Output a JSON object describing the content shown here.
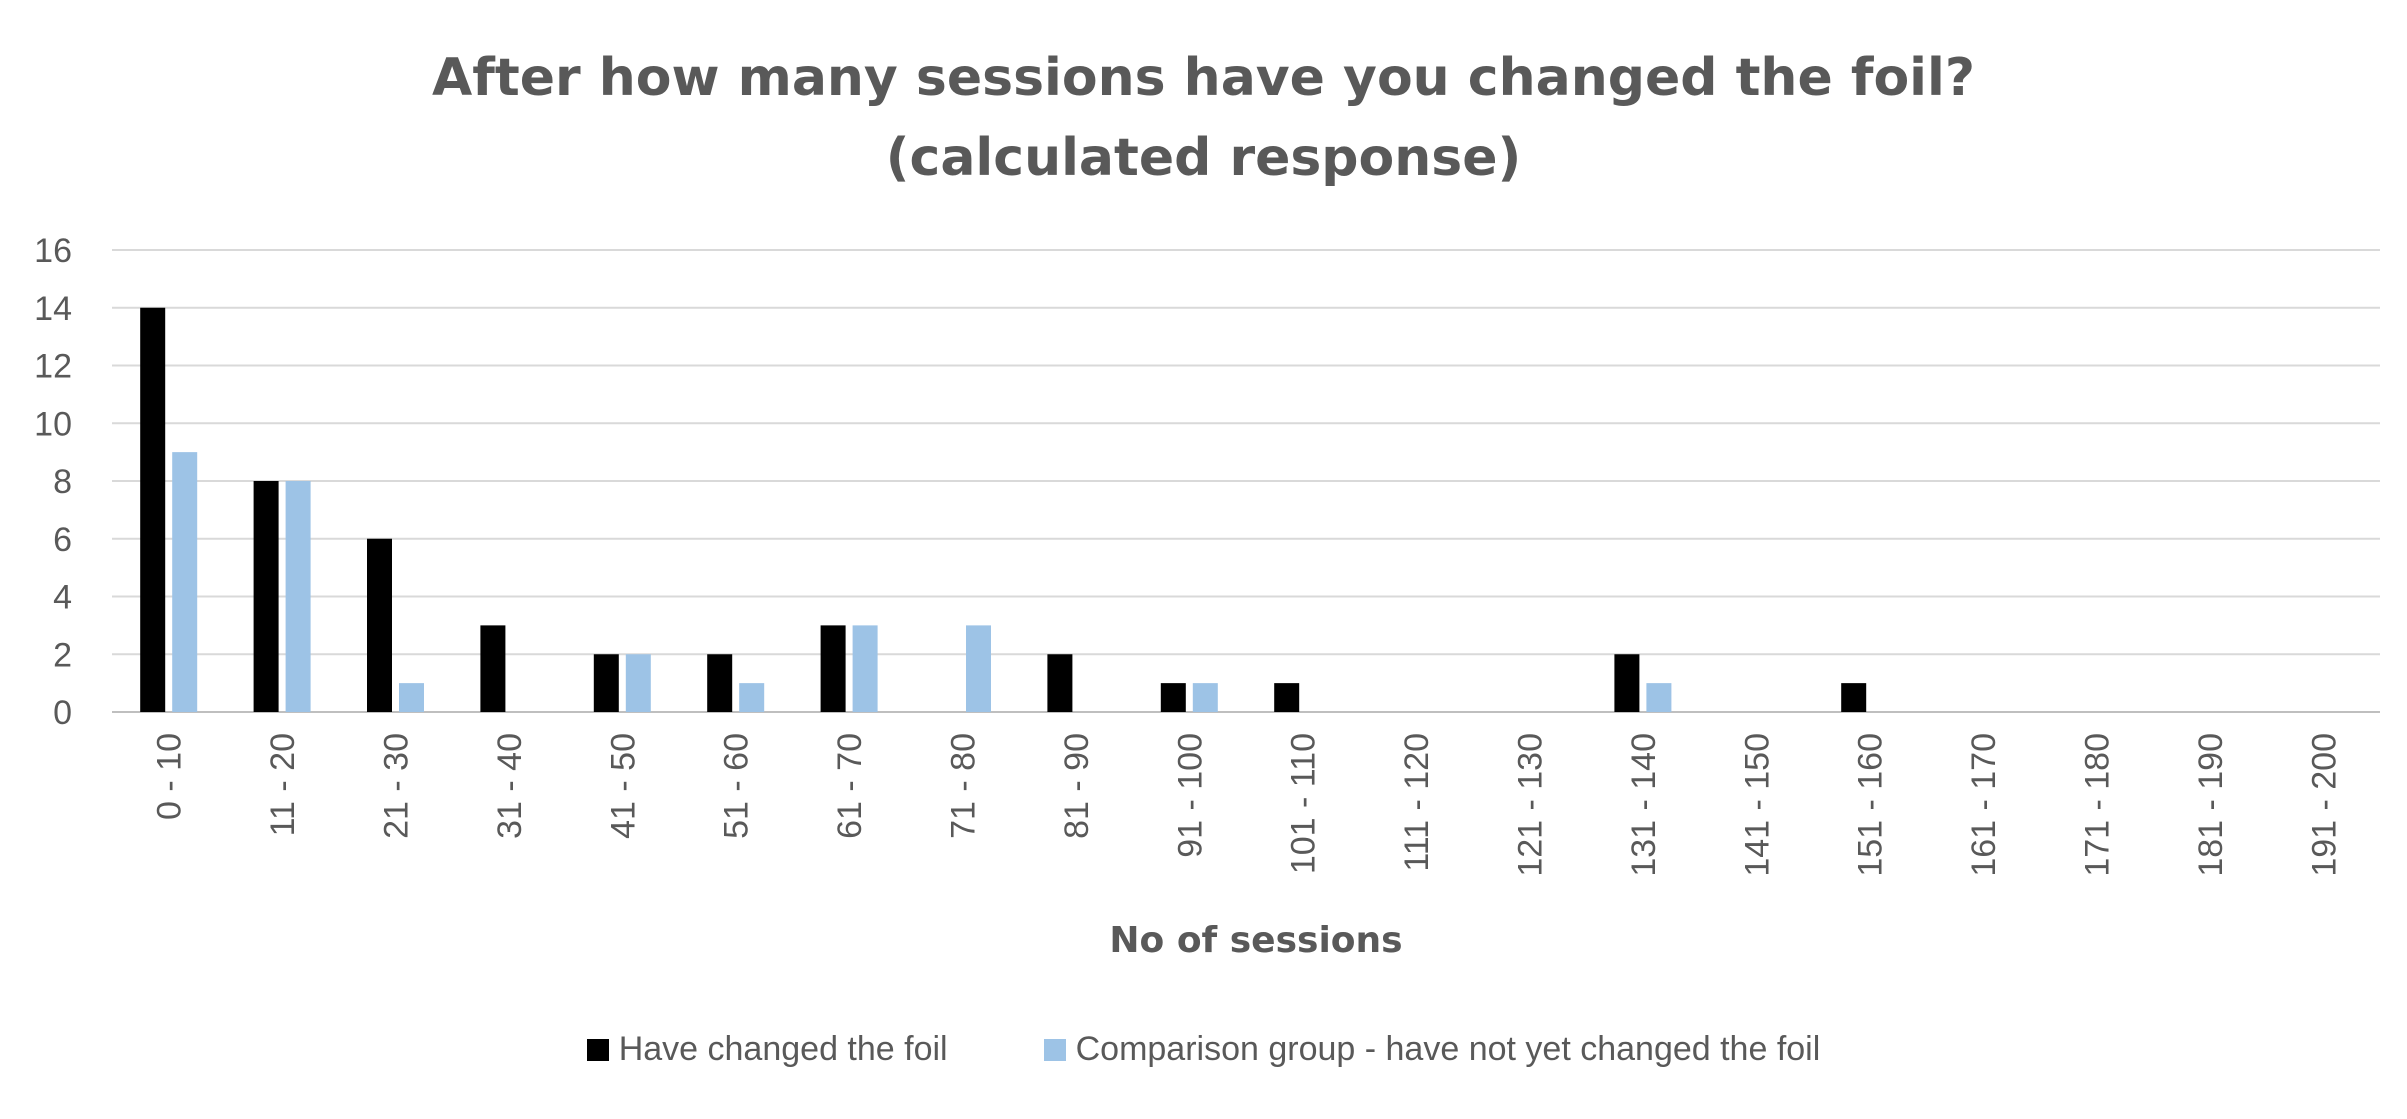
{
  "chart_data": {
    "type": "bar",
    "title": "After how many sessions have you changed the foil?",
    "subtitle": "(calculated response)",
    "xlabel": "No of sessions",
    "ylabel": "",
    "ylim": [
      0,
      16
    ],
    "yticks": [
      0,
      2,
      4,
      6,
      8,
      10,
      12,
      14,
      16
    ],
    "grid": true,
    "legend_position": "bottom",
    "categories": [
      "0 - 10",
      "11 - 20",
      "21 - 30",
      "31 - 40",
      "41 - 50",
      "51 - 60",
      "61 - 70",
      "71 - 80",
      "81 - 90",
      "91 - 100",
      "101 - 110",
      "111 - 120",
      "121 - 130",
      "131 - 140",
      "141 - 150",
      "151 - 160",
      "161 - 170",
      "171 - 180",
      "181 - 190",
      "191 - 200"
    ],
    "series": [
      {
        "name": "Have changed the foil",
        "color": "#000000",
        "values": [
          14,
          8,
          6,
          3,
          2,
          2,
          3,
          0,
          2,
          1,
          1,
          0,
          0,
          2,
          0,
          1,
          0,
          0,
          0,
          0
        ]
      },
      {
        "name": "Comparison group - have not yet changed the foil",
        "color": "#9DC3E6",
        "values": [
          9,
          8,
          1,
          0,
          2,
          1,
          3,
          3,
          0,
          1,
          0,
          0,
          0,
          1,
          0,
          0,
          0,
          0,
          0,
          0
        ]
      }
    ]
  }
}
